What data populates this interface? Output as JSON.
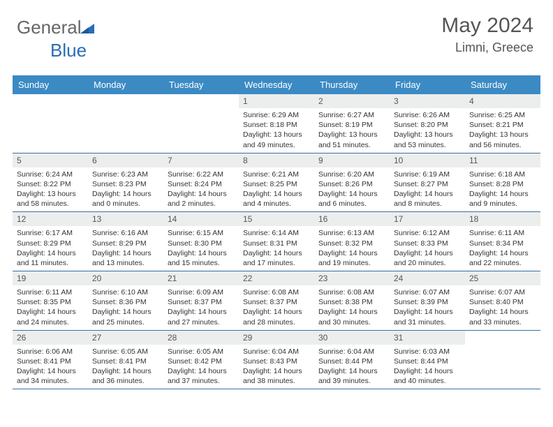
{
  "logo": {
    "text1": "General",
    "text2": "Blue"
  },
  "header": {
    "title": "May 2024",
    "location": "Limni, Greece"
  },
  "colors": {
    "header_bg": "#3b8ac4",
    "header_text": "#ffffff",
    "daynum_bg": "#eceded",
    "rule": "#3b6ea5",
    "title_color": "#555555",
    "body_text": "#333333",
    "logo_blue": "#2a6db8"
  },
  "day_headers": [
    "Sunday",
    "Monday",
    "Tuesday",
    "Wednesday",
    "Thursday",
    "Friday",
    "Saturday"
  ],
  "weeks": [
    [
      {
        "n": "",
        "sr": "",
        "ss": "",
        "dl": ""
      },
      {
        "n": "",
        "sr": "",
        "ss": "",
        "dl": ""
      },
      {
        "n": "",
        "sr": "",
        "ss": "",
        "dl": ""
      },
      {
        "n": "1",
        "sr": "6:29 AM",
        "ss": "8:18 PM",
        "dl": "13 hours and 49 minutes."
      },
      {
        "n": "2",
        "sr": "6:27 AM",
        "ss": "8:19 PM",
        "dl": "13 hours and 51 minutes."
      },
      {
        "n": "3",
        "sr": "6:26 AM",
        "ss": "8:20 PM",
        "dl": "13 hours and 53 minutes."
      },
      {
        "n": "4",
        "sr": "6:25 AM",
        "ss": "8:21 PM",
        "dl": "13 hours and 56 minutes."
      }
    ],
    [
      {
        "n": "5",
        "sr": "6:24 AM",
        "ss": "8:22 PM",
        "dl": "13 hours and 58 minutes."
      },
      {
        "n": "6",
        "sr": "6:23 AM",
        "ss": "8:23 PM",
        "dl": "14 hours and 0 minutes."
      },
      {
        "n": "7",
        "sr": "6:22 AM",
        "ss": "8:24 PM",
        "dl": "14 hours and 2 minutes."
      },
      {
        "n": "8",
        "sr": "6:21 AM",
        "ss": "8:25 PM",
        "dl": "14 hours and 4 minutes."
      },
      {
        "n": "9",
        "sr": "6:20 AM",
        "ss": "8:26 PM",
        "dl": "14 hours and 6 minutes."
      },
      {
        "n": "10",
        "sr": "6:19 AM",
        "ss": "8:27 PM",
        "dl": "14 hours and 8 minutes."
      },
      {
        "n": "11",
        "sr": "6:18 AM",
        "ss": "8:28 PM",
        "dl": "14 hours and 9 minutes."
      }
    ],
    [
      {
        "n": "12",
        "sr": "6:17 AM",
        "ss": "8:29 PM",
        "dl": "14 hours and 11 minutes."
      },
      {
        "n": "13",
        "sr": "6:16 AM",
        "ss": "8:29 PM",
        "dl": "14 hours and 13 minutes."
      },
      {
        "n": "14",
        "sr": "6:15 AM",
        "ss": "8:30 PM",
        "dl": "14 hours and 15 minutes."
      },
      {
        "n": "15",
        "sr": "6:14 AM",
        "ss": "8:31 PM",
        "dl": "14 hours and 17 minutes."
      },
      {
        "n": "16",
        "sr": "6:13 AM",
        "ss": "8:32 PM",
        "dl": "14 hours and 19 minutes."
      },
      {
        "n": "17",
        "sr": "6:12 AM",
        "ss": "8:33 PM",
        "dl": "14 hours and 20 minutes."
      },
      {
        "n": "18",
        "sr": "6:11 AM",
        "ss": "8:34 PM",
        "dl": "14 hours and 22 minutes."
      }
    ],
    [
      {
        "n": "19",
        "sr": "6:11 AM",
        "ss": "8:35 PM",
        "dl": "14 hours and 24 minutes."
      },
      {
        "n": "20",
        "sr": "6:10 AM",
        "ss": "8:36 PM",
        "dl": "14 hours and 25 minutes."
      },
      {
        "n": "21",
        "sr": "6:09 AM",
        "ss": "8:37 PM",
        "dl": "14 hours and 27 minutes."
      },
      {
        "n": "22",
        "sr": "6:08 AM",
        "ss": "8:37 PM",
        "dl": "14 hours and 28 minutes."
      },
      {
        "n": "23",
        "sr": "6:08 AM",
        "ss": "8:38 PM",
        "dl": "14 hours and 30 minutes."
      },
      {
        "n": "24",
        "sr": "6:07 AM",
        "ss": "8:39 PM",
        "dl": "14 hours and 31 minutes."
      },
      {
        "n": "25",
        "sr": "6:07 AM",
        "ss": "8:40 PM",
        "dl": "14 hours and 33 minutes."
      }
    ],
    [
      {
        "n": "26",
        "sr": "6:06 AM",
        "ss": "8:41 PM",
        "dl": "14 hours and 34 minutes."
      },
      {
        "n": "27",
        "sr": "6:05 AM",
        "ss": "8:41 PM",
        "dl": "14 hours and 36 minutes."
      },
      {
        "n": "28",
        "sr": "6:05 AM",
        "ss": "8:42 PM",
        "dl": "14 hours and 37 minutes."
      },
      {
        "n": "29",
        "sr": "6:04 AM",
        "ss": "8:43 PM",
        "dl": "14 hours and 38 minutes."
      },
      {
        "n": "30",
        "sr": "6:04 AM",
        "ss": "8:44 PM",
        "dl": "14 hours and 39 minutes."
      },
      {
        "n": "31",
        "sr": "6:03 AM",
        "ss": "8:44 PM",
        "dl": "14 hours and 40 minutes."
      },
      {
        "n": "",
        "sr": "",
        "ss": "",
        "dl": ""
      }
    ]
  ],
  "labels": {
    "sunrise": "Sunrise:",
    "sunset": "Sunset:",
    "daylight": "Daylight:"
  }
}
